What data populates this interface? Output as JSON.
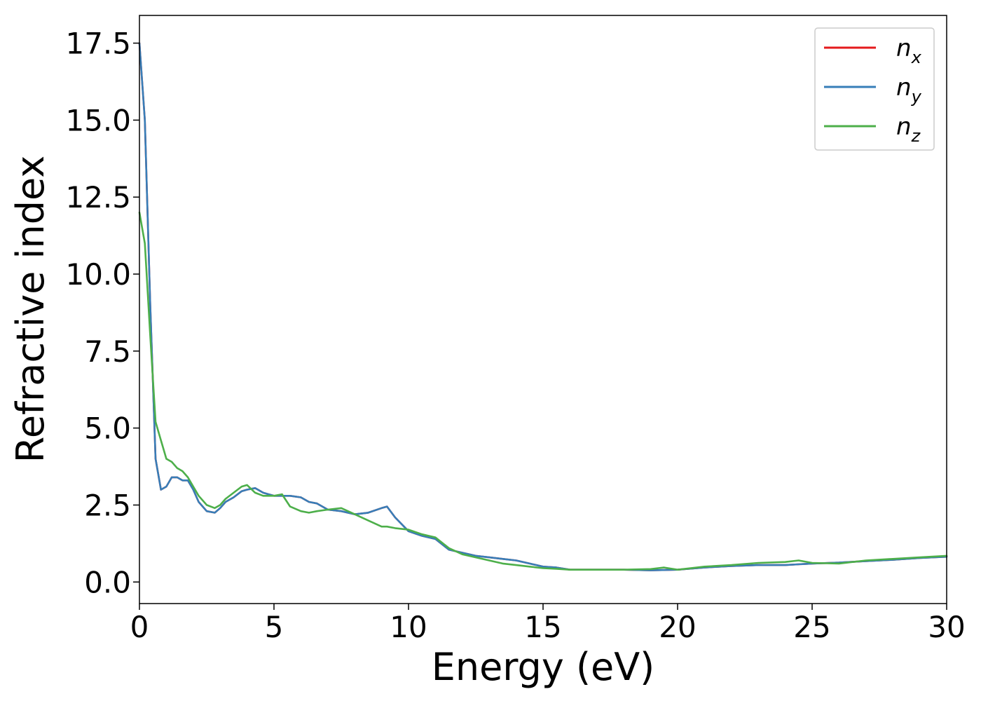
{
  "chart_data": {
    "type": "line",
    "title": "",
    "xlabel": "Energy (eV)",
    "ylabel": "Refractive index",
    "xlim": [
      0,
      30
    ],
    "ylim": [
      -0.7,
      18.4
    ],
    "xticks": [
      0,
      5,
      10,
      15,
      20,
      25,
      30
    ],
    "yticks": [
      0.0,
      2.5,
      5.0,
      7.5,
      10.0,
      12.5,
      15.0,
      17.5
    ],
    "xtick_labels": [
      "0",
      "5",
      "10",
      "15",
      "20",
      "25",
      "30"
    ],
    "ytick_labels": [
      "0.0",
      "2.5",
      "5.0",
      "7.5",
      "10.0",
      "12.5",
      "15.0",
      "17.5"
    ],
    "grid": false,
    "legend_position": "top-right",
    "series": [
      {
        "name": "n",
        "subscript": "x",
        "color": "#e41a1c",
        "x": [
          0,
          0.2,
          0.4,
          0.6,
          0.8,
          1.0,
          1.2,
          1.4,
          1.6,
          1.8,
          2.0,
          2.2,
          2.5,
          2.8,
          3.0,
          3.2,
          3.5,
          3.8,
          4.0,
          4.3,
          4.6,
          5.0,
          5.3,
          5.6,
          6.0,
          6.3,
          6.6,
          7.0,
          7.5,
          8.0,
          8.5,
          9.0,
          9.2,
          9.5,
          10.0,
          10.5,
          11.0,
          11.5,
          12.0,
          12.5,
          13.0,
          13.5,
          14.0,
          14.5,
          15.0,
          15.5,
          16.0,
          17.0,
          18.0,
          19.0,
          20.0,
          21.0,
          22.0,
          23.0,
          24.0,
          25.0,
          26.0,
          27.0,
          28.0,
          29.0,
          30.0
        ],
        "values": [
          17.5,
          15.0,
          9.0,
          4.0,
          3.0,
          3.1,
          3.4,
          3.4,
          3.3,
          3.3,
          3.0,
          2.6,
          2.3,
          2.25,
          2.4,
          2.6,
          2.75,
          2.95,
          3.0,
          3.05,
          2.9,
          2.8,
          2.8,
          2.8,
          2.75,
          2.6,
          2.55,
          2.35,
          2.3,
          2.2,
          2.25,
          2.4,
          2.45,
          2.1,
          1.65,
          1.5,
          1.4,
          1.05,
          0.95,
          0.85,
          0.8,
          0.75,
          0.7,
          0.6,
          0.5,
          0.47,
          0.4,
          0.4,
          0.4,
          0.38,
          0.4,
          0.47,
          0.52,
          0.55,
          0.55,
          0.6,
          0.63,
          0.68,
          0.72,
          0.78,
          0.82
        ]
      },
      {
        "name": "n",
        "subscript": "y",
        "color": "#377eb8",
        "x": [
          0,
          0.2,
          0.4,
          0.6,
          0.8,
          1.0,
          1.2,
          1.4,
          1.6,
          1.8,
          2.0,
          2.2,
          2.5,
          2.8,
          3.0,
          3.2,
          3.5,
          3.8,
          4.0,
          4.3,
          4.6,
          5.0,
          5.3,
          5.6,
          6.0,
          6.3,
          6.6,
          7.0,
          7.5,
          8.0,
          8.5,
          9.0,
          9.2,
          9.5,
          10.0,
          10.5,
          11.0,
          11.5,
          12.0,
          12.5,
          13.0,
          13.5,
          14.0,
          14.5,
          15.0,
          15.5,
          16.0,
          17.0,
          18.0,
          19.0,
          20.0,
          21.0,
          22.0,
          23.0,
          24.0,
          25.0,
          26.0,
          27.0,
          28.0,
          29.0,
          30.0
        ],
        "values": [
          17.5,
          15.0,
          9.0,
          4.0,
          3.0,
          3.1,
          3.4,
          3.4,
          3.3,
          3.3,
          3.0,
          2.6,
          2.3,
          2.25,
          2.4,
          2.6,
          2.75,
          2.95,
          3.0,
          3.05,
          2.9,
          2.8,
          2.8,
          2.8,
          2.75,
          2.6,
          2.55,
          2.35,
          2.3,
          2.2,
          2.25,
          2.4,
          2.45,
          2.1,
          1.65,
          1.5,
          1.4,
          1.05,
          0.95,
          0.85,
          0.8,
          0.75,
          0.7,
          0.6,
          0.5,
          0.47,
          0.4,
          0.4,
          0.4,
          0.38,
          0.4,
          0.47,
          0.52,
          0.55,
          0.55,
          0.6,
          0.63,
          0.68,
          0.72,
          0.78,
          0.82
        ]
      },
      {
        "name": "n",
        "subscript": "z",
        "color": "#4daf4a",
        "x": [
          0,
          0.2,
          0.4,
          0.6,
          0.8,
          1.0,
          1.2,
          1.4,
          1.6,
          1.8,
          2.0,
          2.2,
          2.5,
          2.8,
          3.0,
          3.2,
          3.5,
          3.8,
          4.0,
          4.3,
          4.6,
          5.0,
          5.3,
          5.6,
          6.0,
          6.3,
          6.6,
          7.0,
          7.5,
          8.0,
          8.5,
          9.0,
          9.2,
          9.5,
          10.0,
          10.5,
          11.0,
          11.5,
          12.0,
          12.5,
          13.0,
          13.5,
          14.0,
          14.5,
          15.0,
          15.5,
          16.0,
          17.0,
          18.0,
          19.0,
          19.5,
          20.0,
          21.0,
          22.0,
          23.0,
          24.0,
          24.5,
          25.0,
          26.0,
          27.0,
          28.0,
          29.0,
          30.0
        ],
        "values": [
          12.0,
          11.0,
          8.0,
          5.2,
          4.6,
          4.0,
          3.9,
          3.7,
          3.6,
          3.4,
          3.1,
          2.8,
          2.5,
          2.4,
          2.5,
          2.7,
          2.9,
          3.1,
          3.15,
          2.9,
          2.8,
          2.8,
          2.85,
          2.45,
          2.3,
          2.25,
          2.3,
          2.35,
          2.4,
          2.2,
          2.0,
          1.8,
          1.8,
          1.75,
          1.7,
          1.55,
          1.45,
          1.1,
          0.9,
          0.8,
          0.7,
          0.6,
          0.55,
          0.5,
          0.45,
          0.43,
          0.4,
          0.4,
          0.4,
          0.42,
          0.47,
          0.4,
          0.5,
          0.55,
          0.62,
          0.65,
          0.7,
          0.62,
          0.6,
          0.7,
          0.75,
          0.8,
          0.85
        ]
      }
    ]
  }
}
